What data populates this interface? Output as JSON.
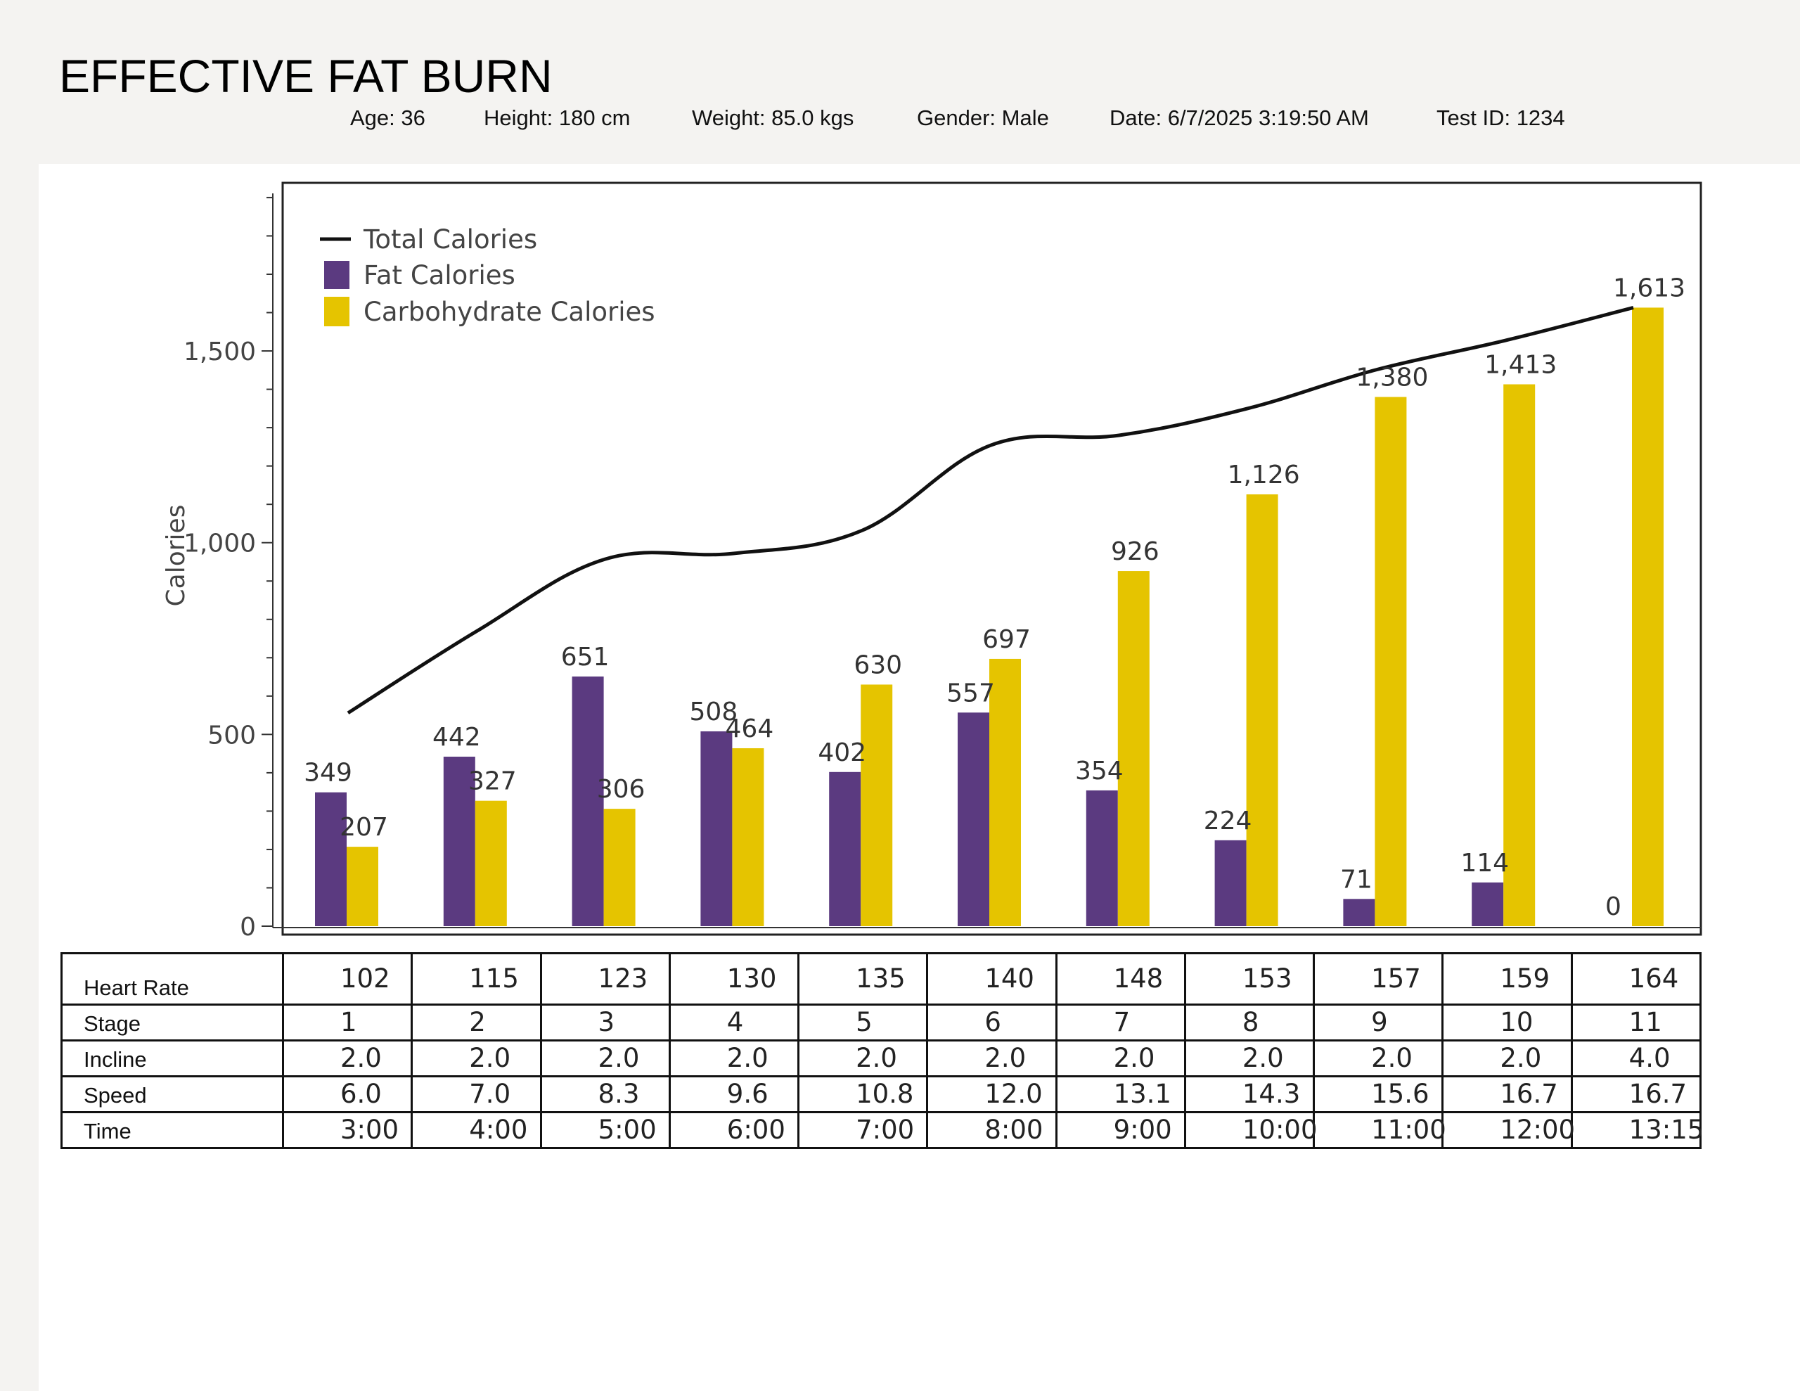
{
  "title": "EFFECTIVE FAT BURN",
  "info": {
    "age": "Age: 36",
    "height": "Height: 180 cm",
    "weight": "Weight: 85.0 kgs",
    "gender": "Gender: Male",
    "date": "Date: 6/7/2025 3:19:50 AM",
    "test_id": "Test ID: 1234"
  },
  "colors": {
    "fat": "#5b3a80",
    "carb": "#e5c400",
    "total": "#111111"
  },
  "chart_data": {
    "type": "bar",
    "title": "",
    "xlabel": "",
    "ylabel": "Calories",
    "ylim": [
      0,
      1900
    ],
    "yticks": [
      0,
      500,
      1000,
      1500
    ],
    "ytick_labels": [
      "0",
      "500",
      "1,000",
      "1,500"
    ],
    "minor_tick_step": 100,
    "grid": false,
    "legend_position": "top-left",
    "categories": [
      "1",
      "2",
      "3",
      "4",
      "5",
      "6",
      "7",
      "8",
      "9",
      "10",
      "11"
    ],
    "series": [
      {
        "name": "Fat Calories",
        "type": "bar",
        "values": [
          349,
          442,
          651,
          508,
          402,
          557,
          354,
          224,
          71,
          114,
          0
        ],
        "labels": [
          "349",
          "442",
          "651",
          "508",
          "402",
          "557",
          "354",
          "224",
          "71",
          "114",
          "0"
        ]
      },
      {
        "name": "Carbohydrate Calories",
        "type": "bar",
        "values": [
          207,
          327,
          306,
          464,
          630,
          697,
          926,
          1126,
          1380,
          1413,
          1613
        ],
        "labels": [
          "207",
          "327",
          "306",
          "464",
          "630",
          "697",
          "926",
          "1,126",
          "1,380",
          "1,413",
          "1,613"
        ]
      },
      {
        "name": "Total Calories",
        "type": "line",
        "values": [
          556,
          769,
          957,
          972,
          1032,
          1254,
          1280,
          1350,
          1451,
          1527,
          1613
        ]
      }
    ]
  },
  "table": {
    "rows": [
      {
        "label": "Heart Rate",
        "values": [
          "102",
          "115",
          "123",
          "130",
          "135",
          "140",
          "148",
          "153",
          "157",
          "159",
          "164"
        ]
      },
      {
        "label": "Stage",
        "values": [
          "1",
          "2",
          "3",
          "4",
          "5",
          "6",
          "7",
          "8",
          "9",
          "10",
          "11"
        ]
      },
      {
        "label": "Incline",
        "values": [
          "2.0",
          "2.0",
          "2.0",
          "2.0",
          "2.0",
          "2.0",
          "2.0",
          "2.0",
          "2.0",
          "2.0",
          "4.0"
        ]
      },
      {
        "label": "Speed",
        "values": [
          "6.0",
          "7.0",
          "8.3",
          "9.6",
          "10.8",
          "12.0",
          "13.1",
          "14.3",
          "15.6",
          "16.7",
          "16.7"
        ]
      },
      {
        "label": "Time",
        "values": [
          "3:00",
          "4:00",
          "5:00",
          "6:00",
          "7:00",
          "8:00",
          "9:00",
          "10:00",
          "11:00",
          "12:00",
          "13:15"
        ]
      }
    ]
  }
}
